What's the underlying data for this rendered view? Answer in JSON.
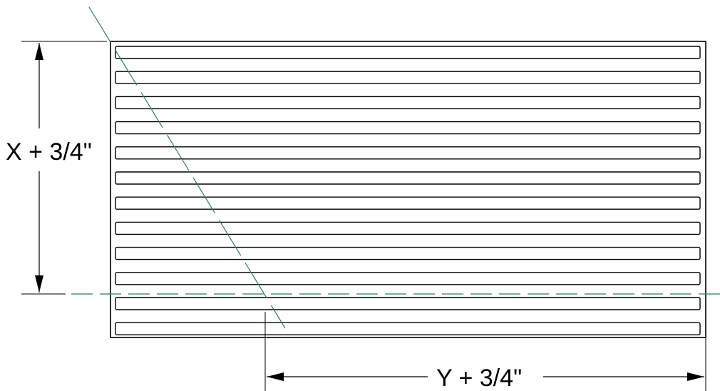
{
  "dimensions": {
    "height_label": "X + 3/4\"",
    "width_label": "Y + 3/4\""
  },
  "drawing": {
    "slot_count": 12,
    "colors": {
      "line": "#000000",
      "centerline": "#2e7d5b",
      "background": "#ffffff"
    }
  }
}
